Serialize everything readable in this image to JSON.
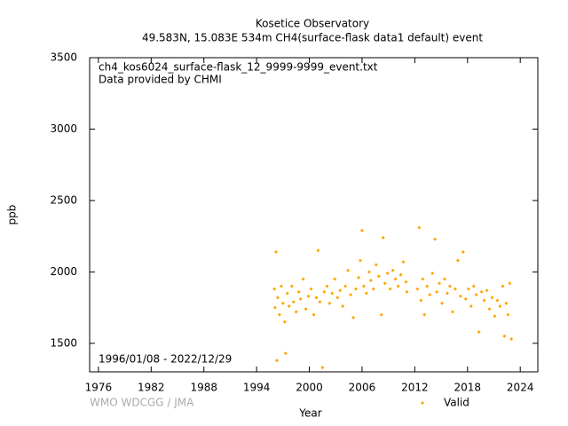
{
  "chart_data": {
    "type": "scatter",
    "title": "Kosetice Observatory",
    "subtitle": "49.583N, 15.083E 534m     CH4(surface-flask data1 default) event",
    "annotations": [
      "ch4_kos6024_surface-flask_12_9999-9999_event.txt",
      "Data provided by CHMI",
      "1996/01/08 - 2022/12/29"
    ],
    "credit": "WMO WDCGG / JMA",
    "x_label": "Year",
    "y_label": "ppb",
    "series": [
      {
        "name": "Valid",
        "color": "#ffa500",
        "x": [
          1996.02,
          1996.1,
          1996.2,
          1996.3,
          1996.4,
          1996.6,
          1996.8,
          1997.0,
          1997.2,
          1997.3,
          1997.5,
          1997.7,
          1998.0,
          1998.2,
          1998.5,
          1998.8,
          1999.0,
          1999.3,
          1999.6,
          1999.9,
          2000.2,
          2000.5,
          2000.8,
          2001.0,
          2001.2,
          2001.5,
          2001.7,
          2002.0,
          2002.3,
          2002.6,
          2002.9,
          2003.2,
          2003.5,
          2003.8,
          2004.1,
          2004.4,
          2004.7,
          2005.0,
          2005.3,
          2005.6,
          2005.8,
          2006.0,
          2006.2,
          2006.5,
          2006.8,
          2007.0,
          2007.3,
          2007.6,
          2007.9,
          2008.2,
          2008.4,
          2008.6,
          2008.9,
          2009.2,
          2009.5,
          2009.8,
          2010.1,
          2010.4,
          2010.7,
          2011.0,
          2011.1,
          2012.3,
          2012.5,
          2012.7,
          2012.9,
          2013.1,
          2013.4,
          2013.7,
          2014.0,
          2014.3,
          2014.5,
          2014.8,
          2015.1,
          2015.4,
          2015.7,
          2016.0,
          2016.3,
          2016.6,
          2016.9,
          2017.2,
          2017.5,
          2017.8,
          2018.1,
          2018.4,
          2018.7,
          2019.0,
          2019.3,
          2019.6,
          2019.9,
          2020.2,
          2020.5,
          2020.8,
          2021.1,
          2021.4,
          2021.7,
          2022.0,
          2022.2,
          2022.4,
          2022.6,
          2022.8,
          2022.99
        ],
        "values": [
          1880,
          1750,
          2140,
          1380,
          1820,
          1700,
          1900,
          1780,
          1650,
          1430,
          1850,
          1760,
          1900,
          1790,
          1720,
          1860,
          1810,
          1950,
          1740,
          1830,
          1880,
          1700,
          1820,
          2150,
          1790,
          1330,
          1860,
          1900,
          1780,
          1850,
          1950,
          1820,
          1870,
          1760,
          1900,
          2010,
          1840,
          1680,
          1880,
          1960,
          2080,
          2290,
          1900,
          1850,
          2000,
          1940,
          1880,
          2050,
          1970,
          1700,
          2240,
          1920,
          1990,
          1880,
          2010,
          1950,
          1900,
          1980,
          2070,
          1930,
          1860,
          1880,
          2310,
          1800,
          1950,
          1700,
          1900,
          1840,
          1990,
          2230,
          1860,
          1920,
          1780,
          1950,
          1850,
          1900,
          1720,
          1880,
          2080,
          1830,
          2140,
          1810,
          1880,
          1760,
          1900,
          1840,
          1580,
          1860,
          1800,
          1870,
          1740,
          1820,
          1690,
          1800,
          1760,
          1900,
          1550,
          1780,
          1700,
          1920,
          1530
        ]
      }
    ],
    "xlim": [
      1975,
      2026
    ],
    "xticks": [
      1976,
      1982,
      1988,
      1994,
      2000,
      2006,
      2012,
      2018,
      2024
    ],
    "ylim": [
      1300,
      3500
    ],
    "yticks": [
      1500,
      2000,
      2500,
      3000,
      3500
    ],
    "legend": "bottom-right"
  }
}
